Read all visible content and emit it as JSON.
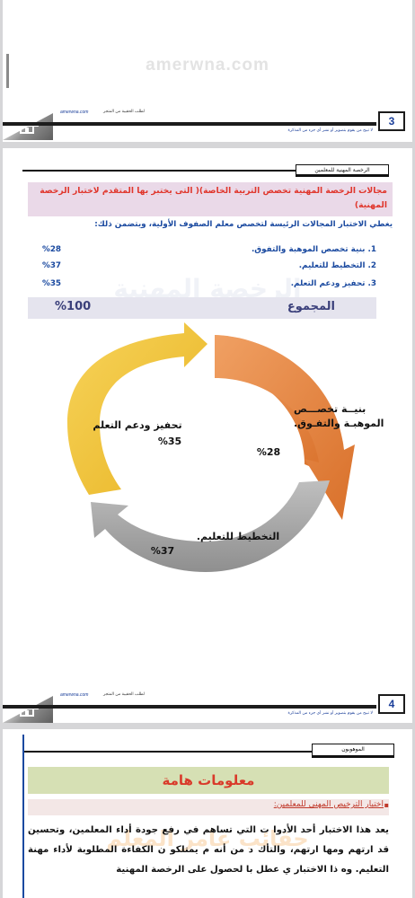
{
  "top_page": {
    "watermark": "amerwna.com",
    "footer": {
      "site": "amerwna.com",
      "subtitle": "لطلب الحقيبة من المتجر",
      "rights": "لا تبيح من يقوم بتصوير أو نشر أي جزء من المذكرة",
      "page_number": "3"
    }
  },
  "mid_page": {
    "header_box": "الرخصة المهنية للمعلمين",
    "title": "مجالات الرخصة المهنية تخصص التربية الخاصة)( التى يختبر بها المتقدم لاختبار الرخصة المهنية)",
    "intro": "يغطي الاختبار المجالات الرئيسة لتخصص معلم الصفوف الأولية، ويتضمن ذلك:",
    "domains": [
      {
        "label": "1. بنية تخصص الموهبة والتفوق.",
        "percent": "%28"
      },
      {
        "label": "2. التخطيط للتعليم.",
        "percent": "%37"
      },
      {
        "label": "3. تحفيز ودعم التعلم.",
        "percent": "%35"
      }
    ],
    "watermark": "الرخصة المهنية",
    "total": {
      "label": "المجموع",
      "percent": "%100"
    },
    "diagram": {
      "segments": [
        {
          "line1": "بنيــة تخصـــص",
          "line2": "الموهبـة والتفـوق.",
          "percent": "%28",
          "color": "#e58a46"
        },
        {
          "line1": "التخطيط للتعليم.",
          "line2": "",
          "percent": "%37",
          "color": "#a9a9a9"
        },
        {
          "line1": "تحفيز ودعم التعلم",
          "line2": "",
          "percent": "%35",
          "color": "#f2c53c"
        }
      ]
    },
    "footer": {
      "site": "amerwna.com",
      "subtitle": "لطلب الحقيبة من المتجر",
      "rights": "لا تبيح من يقوم بتصوير أو نشر أي جزء من المذكرة",
      "page_number": "4"
    }
  },
  "bottom_page": {
    "header_box": "الموهوبون",
    "banner": "معلومات هامة",
    "subheading": "اختبار الترخيص المهني للمعلمين:",
    "bullet": "▪",
    "watermark": "حقائب عامر المعلم",
    "paragraph": "يعد هذا الاختبار أحد الأدوا ت التي تساهم في رفع جودة أداء المعلمين، وتحسين قد ارتهم ومها ارتهم، والتأك د من أنه م يمتلكو ن الكفاءة المطلوبة لأداء مهنة التعليم. وه ذا الاختبار ي عطل با لحصول على الرخصة المهنية"
  }
}
